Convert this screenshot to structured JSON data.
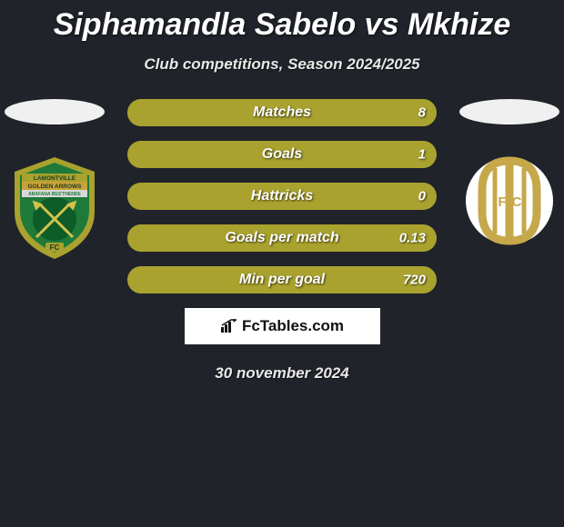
{
  "title": "Siphamandla Sabelo vs Mkhize",
  "subtitle": "Club competitions, Season 2024/2025",
  "date": "30 november 2024",
  "attribution": "FcTables.com",
  "colors": {
    "background": "#20232a",
    "left": "#a9a22e",
    "right": "#3a3d44",
    "text": "#ffffff",
    "crest_left_outer": "#a9a22e",
    "crest_left_inner": "#1f7a3a",
    "crest_left_center": "#0e5c28",
    "crest_right_circle": "#ffffff",
    "crest_right_mark": "#c6a84b"
  },
  "bars": [
    {
      "label": "Matches",
      "left": "",
      "right": "8",
      "left_pct": 100,
      "right_pct": 0
    },
    {
      "label": "Goals",
      "left": "",
      "right": "1",
      "left_pct": 100,
      "right_pct": 0
    },
    {
      "label": "Hattricks",
      "left": "",
      "right": "0",
      "left_pct": 100,
      "right_pct": 0
    },
    {
      "label": "Goals per match",
      "left": "",
      "right": "0.13",
      "left_pct": 100,
      "right_pct": 0
    },
    {
      "label": "Min per goal",
      "left": "",
      "right": "720",
      "left_pct": 100,
      "right_pct": 0
    }
  ],
  "crest_left": {
    "banner_top": "LAMONTVILLE",
    "banner_mid": "GOLDEN ARROWS",
    "banner_sub": "ABAFANA BES'THENDE",
    "footer": "FC"
  },
  "crest_right": {
    "letters": "FC"
  }
}
